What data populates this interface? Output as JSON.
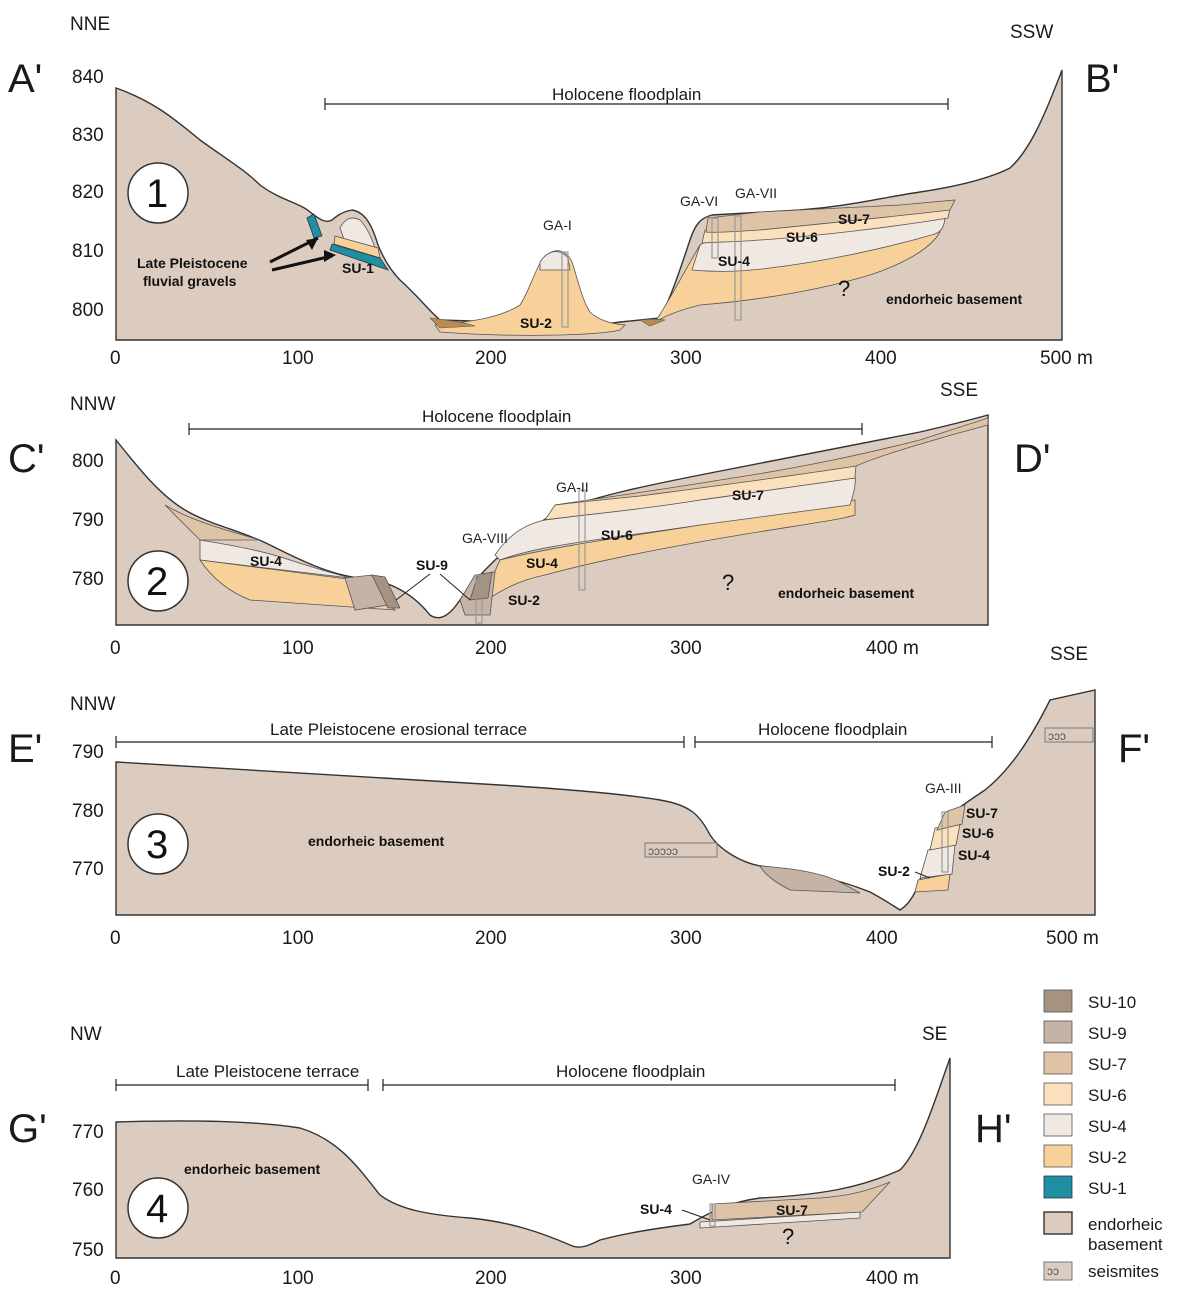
{
  "colors": {
    "su10": "#a59280",
    "su9": "#c5b4a6",
    "su7": "#dfc3a6",
    "su6": "#fbe0bd",
    "su4": "#f0e8e3",
    "su2": "#f8d19a",
    "su1": "#1f8fa3",
    "basement": "#dcccbf"
  },
  "sections": [
    {
      "number": "1",
      "start_label": "A'",
      "end_label": "B'",
      "start_dir": "NNE",
      "end_dir": "SSW",
      "y_ticks": [
        "840",
        "830",
        "820",
        "810",
        "800"
      ],
      "x_ticks": [
        "0",
        "100",
        "200",
        "300",
        "400",
        "500 m"
      ],
      "brackets": [
        "Holocene floodplain"
      ],
      "boreholes": [
        "GA-I",
        "GA-VI",
        "GA-VII"
      ],
      "units": [
        "SU-1",
        "SU-2",
        "SU-4",
        "SU-6",
        "SU-7"
      ],
      "annotations": [
        "Late Pleistocene",
        "fluvial gravels",
        "?",
        "endorheic basement"
      ]
    },
    {
      "number": "2",
      "start_label": "C'",
      "end_label": "D'",
      "start_dir": "NNW",
      "end_dir": "SSE",
      "y_ticks": [
        "800",
        "790",
        "780"
      ],
      "x_ticks": [
        "0",
        "100",
        "200",
        "300",
        "400 m"
      ],
      "brackets": [
        "Holocene floodplain"
      ],
      "boreholes": [
        "GA-II",
        "GA-VIII"
      ],
      "units": [
        "SU-4",
        "SU-9",
        "SU-4",
        "SU-6",
        "SU-7",
        "SU-2"
      ],
      "annotations": [
        "?",
        "endorheic basement"
      ]
    },
    {
      "number": "3",
      "start_label": "E'",
      "end_label": "F'",
      "start_dir": "NNW",
      "end_dir": "SSE",
      "y_ticks": [
        "790",
        "780",
        "770"
      ],
      "x_ticks": [
        "0",
        "100",
        "200",
        "300",
        "400",
        "500 m"
      ],
      "brackets": [
        "Late Pleistocene erosional terrace",
        "Holocene floodplain"
      ],
      "boreholes": [
        "GA-III"
      ],
      "units": [
        "SU-7",
        "SU-6",
        "SU-4",
        "SU-2"
      ],
      "annotations": [
        "endorheic basement"
      ]
    },
    {
      "number": "4",
      "start_label": "G'",
      "end_label": "H'",
      "start_dir": "NW",
      "end_dir": "SE",
      "y_ticks": [
        "770",
        "760",
        "750"
      ],
      "x_ticks": [
        "0",
        "100",
        "200",
        "300",
        "400 m"
      ],
      "brackets": [
        "Late Pleistocene terrace",
        "Holocene floodplain"
      ],
      "boreholes": [
        "GA-IV"
      ],
      "units": [
        "SU-4",
        "SU-7"
      ],
      "annotations": [
        "endorheic basement",
        "?"
      ]
    }
  ],
  "legend": [
    {
      "label": "SU-10",
      "color": "#a59280"
    },
    {
      "label": "SU-9",
      "color": "#c5b4a6"
    },
    {
      "label": "SU-7",
      "color": "#dfc3a6"
    },
    {
      "label": "SU-6",
      "color": "#fbe0bd"
    },
    {
      "label": "SU-4",
      "color": "#f0e8e3"
    },
    {
      "label": "SU-2",
      "color": "#f8d19a"
    },
    {
      "label": "SU-1",
      "color": "#1f8fa3"
    },
    {
      "label": "endorheic",
      "label2": "basement",
      "color": "#dcccbf"
    },
    {
      "label": "seismites",
      "color": "#dcccbf"
    }
  ]
}
